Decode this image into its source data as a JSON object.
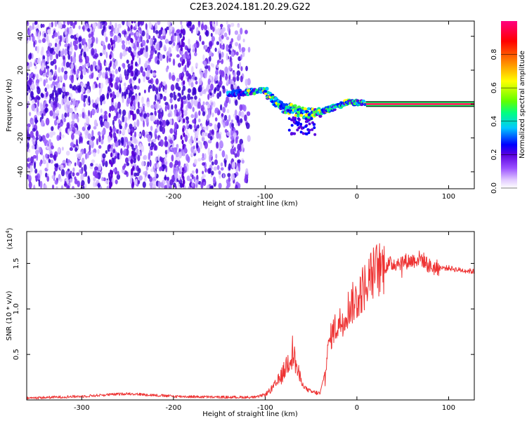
{
  "title": "C2E3.2024.181.20.29.G22",
  "chart_data": [
    {
      "type": "heatmap",
      "title": "C2E3.2024.181.20.29.G22",
      "xlabel": "Height of straight line (km)",
      "ylabel": "Frequency (Hz)",
      "xlim": [
        -360,
        128
      ],
      "ylim": [
        -50,
        49
      ],
      "xticks": [
        -300,
        -200,
        -100,
        0,
        100
      ],
      "yticks": [
        -40,
        -20,
        0,
        20,
        40
      ],
      "ridge": [
        {
          "x": -140,
          "y": 6
        },
        {
          "x": -120,
          "y": 7
        },
        {
          "x": -100,
          "y": 8
        },
        {
          "x": -90,
          "y": 2
        },
        {
          "x": -80,
          "y": -2
        },
        {
          "x": -70,
          "y": -3
        },
        {
          "x": -60,
          "y": -5
        },
        {
          "x": -50,
          "y": -6
        },
        {
          "x": -40,
          "y": -5
        },
        {
          "x": -30,
          "y": -3
        },
        {
          "x": -20,
          "y": -1
        },
        {
          "x": -10,
          "y": 1
        },
        {
          "x": 0,
          "y": 1
        },
        {
          "x": 10,
          "y": 0
        }
      ],
      "noise_extent": [
        -360,
        -115
      ],
      "carrier": {
        "x_start": 10,
        "x_end": 128,
        "y": 0
      },
      "colorbar": {
        "label": "Normalized spectral amplitude",
        "range": [
          0,
          1
        ],
        "ticks": [
          "0.0",
          "0.2",
          "0.4",
          "0.6",
          "0.8"
        ],
        "colors": [
          "#ffffff",
          "#e0c8ff",
          "#9a50ff",
          "#5a00e0",
          "#0000ff",
          "#00c8ff",
          "#00ff80",
          "#60ff00",
          "#ffff00",
          "#ff8000",
          "#ff0000",
          "#ff0080"
        ]
      }
    },
    {
      "type": "line",
      "xlabel": "Height of straight line (km)",
      "ylabel": "SNR (10 * v/v)",
      "multiplier_label": "(x10",
      "multiplier_exp": "4",
      "xlim": [
        -360,
        128
      ],
      "ylim": [
        0,
        18500
      ],
      "xticks": [
        -300,
        -200,
        -100,
        0,
        100
      ],
      "yticks": [
        5000,
        10000,
        15000
      ],
      "ytick_labels": [
        "0.5",
        "1.0",
        "1.5"
      ],
      "color": "#ee3333",
      "series": [
        {
          "x": [
            -360,
            -300,
            -250,
            -200,
            -150,
            -110,
            -100,
            -95,
            -90,
            -85,
            -80,
            -75,
            -70,
            -65,
            -60,
            -55,
            -50,
            -45,
            -40,
            -35,
            -30,
            -25,
            -20,
            -15,
            -10,
            -5,
            0,
            5,
            10,
            15,
            20,
            30,
            40,
            50,
            60,
            70,
            80,
            90,
            100,
            110,
            120,
            128
          ],
          "y": [
            200,
            400,
            700,
            400,
            300,
            300,
            600,
            1000,
            1500,
            2200,
            3000,
            4300,
            5400,
            3300,
            1800,
            1200,
            900,
            800,
            700,
            3000,
            6500,
            7800,
            8300,
            9000,
            10000,
            10600,
            11000,
            12000,
            12800,
            13500,
            14200,
            14700,
            15000,
            15200,
            15300,
            15600,
            14600,
            14500,
            14500,
            14300,
            14200,
            14100
          ]
        }
      ]
    }
  ]
}
